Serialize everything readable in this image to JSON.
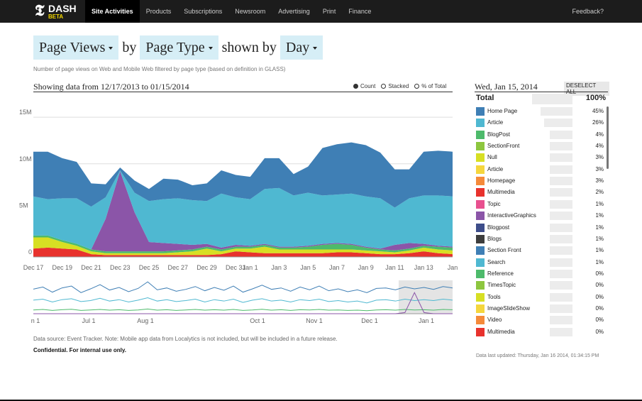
{
  "nav": {
    "logo": "DASH",
    "badge": "BETA",
    "items": [
      "Site Activities",
      "Products",
      "Subscriptions",
      "Newsroom",
      "Advertising",
      "Print",
      "Finance"
    ],
    "feedback": "Feedback?"
  },
  "controls": {
    "metric": "Page Views",
    "by": "by",
    "dimension": "Page Type",
    "shown_by": "shown by",
    "interval": "Day"
  },
  "description": "Number of page views on Web and Mobile Web filtered by page type (based on definition in GLASS)",
  "range_text": "Showing data from 12/17/2013 to 01/15/2014",
  "modes": [
    "Count",
    "Stacked",
    "% of Total"
  ],
  "main_chart": {
    "type": "area",
    "categories": [
      "Dec 17",
      null,
      "Dec 19",
      null,
      "Dec 21",
      null,
      "Dec 23",
      null,
      "Dec 25",
      null,
      "Dec 27",
      null,
      "Dec 29",
      null,
      "Dec 31",
      "Jan 1",
      null,
      "Jan 3",
      null,
      "Jan 5",
      null,
      "Jan 7",
      null,
      "Jan 9",
      null,
      "Jan 11",
      null,
      "Jan 13",
      null,
      "Jan"
    ],
    "ylim": [
      0,
      16000000
    ],
    "yticks": [
      0,
      {
        "value": 5000000,
        "label": "5M"
      },
      {
        "value": 10000000,
        "label": "10M"
      },
      {
        "value": 15000000,
        "label": "15M"
      }
    ],
    "grid": true,
    "series": [
      {
        "color": "#e8322d",
        "values": [
          900000,
          1000000,
          900000,
          800000,
          300000,
          200000,
          200000,
          200000,
          200000,
          200000,
          200000,
          200000,
          200000,
          300000,
          600000,
          500000,
          400000,
          400000,
          400000,
          400000,
          400000,
          500000,
          500000,
          400000,
          300000,
          300000,
          400000,
          600000,
          400000,
          300000
        ]
      },
      {
        "color": "#d7df23",
        "values": [
          1200000,
          1100000,
          700000,
          400000,
          300000,
          200000,
          200000,
          200000,
          200000,
          200000,
          300000,
          400000,
          700000,
          300000,
          300000,
          400000,
          700000,
          400000,
          400000,
          400000,
          400000,
          300000,
          300000,
          300000,
          300000,
          200000,
          300000,
          400000,
          400000,
          400000
        ]
      },
      {
        "color": "#4dba6b",
        "values": [
          200000,
          200000,
          200000,
          200000,
          200000,
          200000,
          200000,
          200000,
          200000,
          200000,
          200000,
          200000,
          200000,
          200000,
          200000,
          200000,
          200000,
          200000,
          200000,
          300000,
          500000,
          600000,
          500000,
          300000,
          200000,
          200000,
          200000,
          200000,
          300000,
          300000
        ]
      },
      {
        "color": "#8b55a8",
        "values": [
          0,
          0,
          0,
          0,
          0,
          3500000,
          8600000,
          4200000,
          1000000,
          900000,
          700000,
          500000,
          300000,
          200000,
          200000,
          100000,
          100000,
          100000,
          100000,
          100000,
          100000,
          100000,
          100000,
          100000,
          100000,
          600000,
          600000,
          200000,
          100000,
          100000
        ]
      },
      {
        "color": "#4fb8d1",
        "values": [
          4200000,
          3900000,
          4500000,
          4900000,
          4600000,
          2300000,
          100000,
          2100000,
          4400000,
          4700000,
          4900000,
          4800000,
          4600000,
          5800000,
          5100000,
          5000000,
          5900000,
          6300000,
          5500000,
          5700000,
          5200000,
          5200000,
          5400000,
          5400000,
          5400000,
          4000000,
          4800000,
          5200000,
          5400000,
          5400000
        ]
      },
      {
        "color": "#3f7fb5",
        "values": [
          4800000,
          5100000,
          4300000,
          3900000,
          2500000,
          1400000,
          300000,
          1300000,
          1300000,
          2200000,
          2000000,
          1600000,
          1900000,
          2500000,
          2400000,
          2400000,
          3300000,
          3200000,
          2300000,
          2800000,
          5100000,
          5400000,
          5500000,
          5500000,
          4900000,
          4100000,
          3100000,
          4700000,
          4800000,
          4800000
        ]
      }
    ]
  },
  "navigator": {
    "type": "line",
    "xticks": [
      "n 1",
      "Jul 1",
      "Aug 1",
      "Oct 1",
      "Nov 1",
      "Dec 1",
      "Jan 1"
    ],
    "series": [
      {
        "color": "#3f7fb5",
        "values": [
          10500000,
          11400000,
          9200000,
          11000000,
          11800000,
          9000000,
          10600000,
          12400000,
          10100000,
          11200000,
          9400000,
          10800000,
          13600000,
          10200000,
          11000000,
          9600000,
          10400000,
          11600000,
          9800000,
          11200000,
          10000000,
          11800000,
          9200000,
          10600000,
          12200000,
          10400000,
          11000000,
          9600000,
          11400000,
          10200000,
          11800000,
          9800000,
          10600000,
          9400000,
          10200000,
          9000000,
          10800000,
          11000000,
          10200000,
          11400000,
          10600000,
          11200000,
          10400000,
          11600000,
          11000000
        ]
      },
      {
        "color": "#4fb8d1",
        "values": [
          5800000,
          6200000,
          5000000,
          6000000,
          6400000,
          5200000,
          5600000,
          6600000,
          5400000,
          6000000,
          5000000,
          5800000,
          6800000,
          5400000,
          6000000,
          5200000,
          5600000,
          6200000,
          5000000,
          6000000,
          5400000,
          6200000,
          4800000,
          5800000,
          6400000,
          5400000,
          5800000,
          5000000,
          6000000,
          5600000,
          6200000,
          5200000,
          5600000,
          5000000,
          5400000,
          4600000,
          5800000,
          6000000,
          5400000,
          6200000,
          5600000,
          6000000,
          5600000,
          6200000,
          5800000
        ]
      },
      {
        "color": "#4dba6b",
        "values": [
          1600000,
          1800000,
          1400000,
          1700000,
          1900000,
          1400000,
          1600000,
          1800000,
          1500000,
          1700000,
          1400000,
          1600000,
          2000000,
          1500000,
          1700000,
          1400000,
          1600000,
          1800000,
          1500000,
          1700000,
          1500000,
          1800000,
          1400000,
          1600000,
          1900000,
          1500000,
          1700000,
          1400000,
          1700000,
          1600000,
          1800000,
          1500000,
          1600000,
          1400000,
          1500000,
          1300000,
          1600000,
          1700000,
          1500000,
          1800000,
          1600000,
          1700000,
          1500000,
          1800000,
          1700000
        ]
      },
      {
        "color": "#8b55a8",
        "values": [
          0,
          0,
          0,
          0,
          0,
          0,
          0,
          0,
          0,
          0,
          0,
          0,
          0,
          0,
          0,
          0,
          0,
          0,
          0,
          0,
          0,
          0,
          0,
          0,
          0,
          0,
          0,
          0,
          0,
          0,
          0,
          0,
          0,
          0,
          0,
          0,
          0,
          0,
          0,
          500000,
          9000000,
          500000,
          0,
          0,
          0
        ]
      }
    ]
  },
  "footer": {
    "source": "Data source: Event Tracker. Note: Mobile app data from Localytics is not included, but will be included in a future release.",
    "confidential": "Confidential. For internal use only."
  },
  "panel": {
    "date": "Wed, Jan 15, 2014",
    "deselect": "DESELECT ALL",
    "total_label": "Total",
    "total_pct": "100%",
    "items": [
      {
        "name": "Home Page",
        "color": "#3f7fb5",
        "pct": "45%"
      },
      {
        "name": "Article",
        "color": "#4fb8d1",
        "pct": "26%"
      },
      {
        "name": "BlogPost",
        "color": "#4dba6b",
        "pct": "4%"
      },
      {
        "name": "SectionFront",
        "color": "#8dc63f",
        "pct": "4%"
      },
      {
        "name": "Null",
        "color": "#d7df23",
        "pct": "3%"
      },
      {
        "name": "Article",
        "color": "#f5d63d",
        "pct": "3%"
      },
      {
        "name": "Homepage",
        "color": "#f58a3a",
        "pct": "3%"
      },
      {
        "name": "Multimedia",
        "color": "#e8322d",
        "pct": "2%"
      },
      {
        "name": "Topic",
        "color": "#e8508f",
        "pct": "1%"
      },
      {
        "name": "InteractiveGraphics",
        "color": "#8b55a8",
        "pct": "1%"
      },
      {
        "name": "Blogpost",
        "color": "#3d4d8a",
        "pct": "1%"
      },
      {
        "name": "Blogs",
        "color": "#3d3d3d",
        "pct": "1%"
      },
      {
        "name": "Section Front",
        "color": "#3f7fb5",
        "pct": "1%"
      },
      {
        "name": "Search",
        "color": "#4fb8d1",
        "pct": "1%"
      },
      {
        "name": "Reference",
        "color": "#4dba6b",
        "pct": "0%"
      },
      {
        "name": "TimesTopic",
        "color": "#8dc63f",
        "pct": "0%"
      },
      {
        "name": "Tools",
        "color": "#d7df23",
        "pct": "0%"
      },
      {
        "name": "ImageSlideShow",
        "color": "#f5d63d",
        "pct": "0%"
      },
      {
        "name": "Video",
        "color": "#f58a3a",
        "pct": "0%"
      },
      {
        "name": "Multimedia",
        "color": "#e8322d",
        "pct": "0%"
      }
    ],
    "updated": "Data last updated: Thursday, Jan 16 2014, 01:34:15 PM"
  }
}
